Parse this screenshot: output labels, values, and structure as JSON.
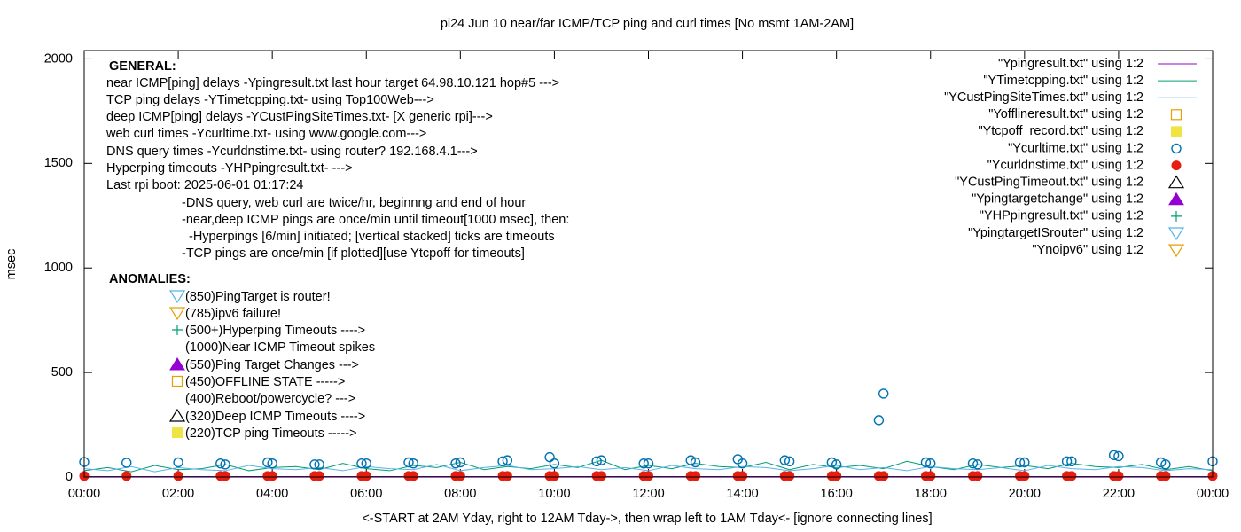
{
  "chart_data": {
    "type": "line",
    "title": "pi24 Jun 10  near/far ICMP/TCP ping and curl times [No msmt 1AM-2AM]",
    "xlabel": "<-START at 2AM Yday, right to 12AM Tday->, then wrap left to 1AM Tday<- [ignore connecting lines]",
    "ylabel": "msec",
    "xlim": [
      0,
      24
    ],
    "xticks": [
      {
        "value": 0,
        "label": "00:00"
      },
      {
        "value": 2,
        "label": "02:00"
      },
      {
        "value": 4,
        "label": "04:00"
      },
      {
        "value": 6,
        "label": "06:00"
      },
      {
        "value": 8,
        "label": "08:00"
      },
      {
        "value": 10,
        "label": "10:00"
      },
      {
        "value": 12,
        "label": "12:00"
      },
      {
        "value": 14,
        "label": "14:00"
      },
      {
        "value": 16,
        "label": "16:00"
      },
      {
        "value": 18,
        "label": "18:00"
      },
      {
        "value": 20,
        "label": "20:00"
      },
      {
        "value": 22,
        "label": "22:00"
      },
      {
        "value": 24,
        "label": "00:00"
      }
    ],
    "ylim": [
      0,
      2040
    ],
    "yticks": [
      0,
      500,
      1000,
      1500,
      2000
    ],
    "legend": "top-right",
    "annotations": [
      "GENERAL:",
      "near ICMP[ping] delays -Ypingresult.txt last hour target 64.98.10.121 hop#5 --->",
      "TCP ping delays -YTimetcpping.txt- using Top100Web--->",
      "deep ICMP[ping] delays -YCustPingSiteTimes.txt- [X generic rpi]--->",
      "web curl times -Ycurltime.txt- using www.google.com--->",
      "DNS query times -Ycurldnstime.txt- using router? 192.168.4.1--->",
      "Hyperping timeouts -YHPpingresult.txt- --->",
      "Last rpi boot: 2025-06-01 01:17:24",
      "-DNS query, web curl are twice/hr, beginnng and end of hour",
      "-near,deep ICMP pings are once/min until timeout[1000 msec], then:",
      "-Hyperpings [6/min] initiated; [vertical stacked] ticks are timeouts",
      "-TCP pings are once/min [if plotted][use Ytcpoff for timeouts]",
      "ANOMALIES:",
      "(850)PingTarget is router!",
      "(785)ipv6 failure!",
      "(500+)Hyperping Timeouts ---->",
      "(1000)Near ICMP Timeout spikes",
      "(550)Ping Target Changes --->",
      "(450)OFFLINE STATE ----->",
      "(400)Reboot/powercycle? --->",
      "(320)Deep ICMP Timeouts ---->",
      "(220)TCP ping Timeouts ----->"
    ],
    "series": [
      {
        "name": "\"Ypingresult.txt\" using 1:2",
        "color": "#9400d3",
        "marker": "line",
        "x": [
          0,
          1,
          2,
          3,
          4,
          5,
          6,
          7,
          8,
          9,
          10,
          11,
          12,
          13,
          14,
          15,
          16,
          17,
          18,
          19,
          20,
          21,
          22,
          23,
          24
        ],
        "values": [
          2,
          2,
          2,
          2,
          2,
          2,
          2,
          2,
          2,
          2,
          2,
          2,
          2,
          2,
          2,
          2,
          2,
          2,
          2,
          2,
          2,
          2,
          2,
          2,
          2
        ]
      },
      {
        "name": "\"YTimetcpping.txt\" using 1:2",
        "color": "#009e73",
        "marker": "line",
        "x": [
          0,
          0.5,
          1,
          1.5,
          2,
          2.5,
          3,
          3.5,
          4,
          4.5,
          5,
          5.5,
          6,
          6.5,
          7,
          7.5,
          8,
          8.5,
          9,
          9.5,
          10,
          10.5,
          11,
          11.5,
          12,
          12.5,
          13,
          13.5,
          14,
          14.5,
          15,
          15.5,
          16,
          16.5,
          17,
          17.5,
          18,
          18.5,
          19,
          19.5,
          20,
          20.5,
          21,
          21.5,
          22,
          22.5,
          23,
          23.5,
          24
        ],
        "values": [
          30,
          45,
          25,
          55,
          35,
          40,
          60,
          30,
          45,
          50,
          35,
          65,
          40,
          30,
          55,
          45,
          70,
          35,
          50,
          40,
          60,
          45,
          80,
          35,
          55,
          40,
          65,
          50,
          45,
          70,
          35,
          60,
          45,
          55,
          40,
          75,
          50,
          35,
          60,
          45,
          55,
          40,
          65,
          50,
          45,
          60,
          35,
          50,
          30
        ]
      },
      {
        "name": "\"YCustPingSiteTimes.txt\" using 1:2",
        "color": "#56b4e9",
        "marker": "line",
        "x": [
          0,
          0.5,
          1,
          1.5,
          2,
          2.5,
          3,
          3.5,
          4,
          4.5,
          5,
          5.5,
          6,
          6.5,
          7,
          7.5,
          8,
          8.5,
          9,
          9.5,
          10,
          10.5,
          11,
          11.5,
          12,
          12.5,
          13,
          13.5,
          14,
          14.5,
          15,
          15.5,
          16,
          16.5,
          17,
          17.5,
          18,
          18.5,
          19,
          19.5,
          20,
          20.5,
          21,
          21.5,
          22,
          22.5,
          23,
          23.5,
          24
        ],
        "values": [
          40,
          30,
          50,
          25,
          45,
          35,
          30,
          55,
          40,
          35,
          45,
          30,
          50,
          40,
          35,
          60,
          30,
          45,
          55,
          35,
          40,
          50,
          35,
          45,
          30,
          55,
          40,
          35,
          50,
          45,
          30,
          40,
          55,
          35,
          45,
          30,
          50,
          40,
          35,
          45,
          30,
          55,
          40,
          35,
          50,
          45,
          30,
          40,
          35
        ]
      },
      {
        "name": "\"Yofflineresult.txt\" using 1:2",
        "color": "#e69f00",
        "marker": "square",
        "x": [],
        "values": []
      },
      {
        "name": "\"Ytcpoff_record.txt\" using 1:2",
        "color": "#f0e442",
        "marker": "filled-square",
        "x": [],
        "values": []
      },
      {
        "name": "\"Ycurltime.txt\" using 1:2",
        "color": "#0072b2",
        "marker": "circle",
        "x": [
          0,
          0.9,
          2,
          2.9,
          3,
          3.9,
          4,
          4.9,
          5,
          5.9,
          6,
          6.9,
          7,
          7.9,
          8,
          8.9,
          9,
          9.9,
          10,
          10.9,
          11,
          11.9,
          12,
          12.9,
          13,
          13.9,
          14,
          14.9,
          15,
          15.9,
          16,
          16.9,
          17,
          17.9,
          18,
          18.9,
          19,
          19.9,
          20,
          20.9,
          21,
          21.9,
          22,
          22.9,
          23,
          24
        ],
        "values": [
          72,
          68,
          70,
          65,
          60,
          70,
          65,
          60,
          60,
          65,
          65,
          70,
          65,
          65,
          70,
          75,
          80,
          95,
          65,
          75,
          80,
          65,
          65,
          80,
          70,
          85,
          65,
          80,
          75,
          70,
          60,
          272,
          399,
          70,
          65,
          65,
          60,
          70,
          70,
          75,
          75,
          105,
          100,
          70,
          60,
          75
        ]
      },
      {
        "name": "\"Ycurldnstime.txt\" using 1:2",
        "color": "#e51e10",
        "marker": "filled-circle",
        "x": [
          0,
          0.9,
          2,
          2.9,
          3,
          3.9,
          4,
          4.9,
          5,
          5.9,
          6,
          6.9,
          7,
          7.9,
          8,
          8.9,
          9,
          9.9,
          10,
          10.9,
          11,
          11.9,
          12,
          12.9,
          13,
          13.9,
          14,
          14.9,
          15,
          15.9,
          16,
          16.9,
          17,
          17.9,
          18,
          18.9,
          19,
          19.9,
          20,
          20.9,
          21,
          21.9,
          22,
          22.9,
          23,
          24
        ],
        "values": [
          5,
          5,
          5,
          5,
          5,
          5,
          5,
          5,
          5,
          5,
          5,
          5,
          5,
          5,
          5,
          5,
          5,
          5,
          5,
          5,
          5,
          5,
          5,
          5,
          5,
          5,
          5,
          5,
          5,
          5,
          5,
          5,
          5,
          5,
          5,
          5,
          5,
          5,
          5,
          5,
          5,
          5,
          5,
          5,
          5,
          5
        ]
      },
      {
        "name": "\"YCustPingTimeout.txt\" using 1:2",
        "color": "#000000",
        "marker": "triangle",
        "x": [],
        "values": []
      },
      {
        "name": "\"Ypingtargetchange\" using 1:2",
        "color": "#9400d3",
        "marker": "filled-triangle",
        "x": [],
        "values": []
      },
      {
        "name": "\"YHPpingresult.txt\" using 1:2",
        "color": "#009e73",
        "marker": "plus",
        "x": [],
        "values": []
      },
      {
        "name": "\"YpingtargetISrouter\" using 1:2",
        "color": "#56b4e9",
        "marker": "down-triangle",
        "x": [],
        "values": []
      },
      {
        "name": "\"Ynoipv6\" using 1:2",
        "color": "#e69f00",
        "marker": "down-triangle",
        "x": [],
        "values": []
      }
    ]
  }
}
